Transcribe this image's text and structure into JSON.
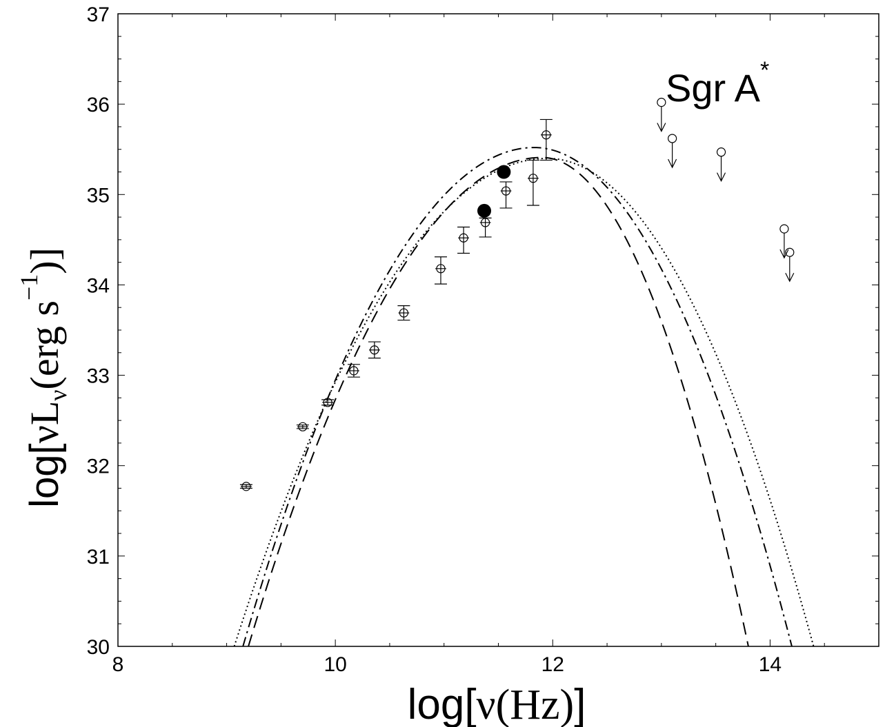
{
  "chart_data": {
    "type": "scatter",
    "title": "",
    "annotation": {
      "main": "Sgr A",
      "superscript": "*"
    },
    "xlabel": {
      "prefix": "log[",
      "symbol": "ν",
      "unit": "(Hz)",
      "suffix": "]"
    },
    "ylabel": {
      "prefix": "log[",
      "nu": "ν",
      "L": "L",
      "sub": "ν",
      "paren_open": "(erg s",
      "exp": "−1",
      "paren_close": ")]"
    },
    "xlim": [
      8,
      15
    ],
    "ylim": [
      30,
      37
    ],
    "x_ticks": [
      8,
      10,
      12,
      14
    ],
    "x_tick_labels": [
      "8",
      "10",
      "12",
      "14"
    ],
    "y_ticks": [
      30,
      31,
      32,
      33,
      34,
      35,
      36,
      37
    ],
    "y_tick_labels": [
      "30",
      "31",
      "32",
      "33",
      "34",
      "35",
      "36",
      "37"
    ],
    "grid": false,
    "legend": "none",
    "points_open": [
      {
        "x": 9.18,
        "y": 31.77,
        "xerr": 0.05,
        "yerr_up": 0.02,
        "yerr_down": 0.02
      },
      {
        "x": 9.7,
        "y": 32.43,
        "xerr": 0.05,
        "yerr_up": 0.02,
        "yerr_down": 0.02
      },
      {
        "x": 9.93,
        "y": 32.7,
        "xerr": 0.05,
        "yerr_up": 0.03,
        "yerr_down": 0.03
      },
      {
        "x": 10.17,
        "y": 33.05,
        "xerr": 0.05,
        "yerr_up": 0.07,
        "yerr_down": 0.07
      },
      {
        "x": 10.36,
        "y": 33.28,
        "xerr": 0.05,
        "yerr_up": 0.09,
        "yerr_down": 0.09
      },
      {
        "x": 10.63,
        "y": 33.69,
        "xerr": 0.05,
        "yerr_up": 0.08,
        "yerr_down": 0.08
      },
      {
        "x": 10.97,
        "y": 34.18,
        "xerr": 0.05,
        "yerr_up": 0.13,
        "yerr_down": 0.17
      },
      {
        "x": 11.18,
        "y": 34.52,
        "xerr": 0.05,
        "yerr_up": 0.12,
        "yerr_down": 0.17
      },
      {
        "x": 11.38,
        "y": 34.69,
        "xerr": 0.05,
        "yerr_up": 0.05,
        "yerr_down": 0.16
      },
      {
        "x": 11.57,
        "y": 35.04,
        "xerr": 0.05,
        "yerr_up": 0.1,
        "yerr_down": 0.19
      },
      {
        "x": 11.82,
        "y": 35.18,
        "xerr": 0.05,
        "yerr_up": 0.2,
        "yerr_down": 0.3
      },
      {
        "x": 11.94,
        "y": 35.66,
        "xerr": 0.05,
        "yerr_up": 0.17,
        "yerr_down": 0.28
      }
    ],
    "points_filled": [
      {
        "x": 11.37,
        "y": 34.82
      },
      {
        "x": 11.55,
        "y": 35.25
      }
    ],
    "upper_limits": [
      {
        "x": 13.0,
        "y": 36.02
      },
      {
        "x": 13.1,
        "y": 35.62
      },
      {
        "x": 13.55,
        "y": 35.47
      },
      {
        "x": 14.13,
        "y": 34.62
      },
      {
        "x": 14.18,
        "y": 34.36
      }
    ],
    "series": [
      {
        "style": "dotted",
        "peak_x": 11.95,
        "peak_y": 35.4,
        "left_x": 9.07,
        "right_x": 14.4
      },
      {
        "style": "dashdot",
        "peak_x": 11.83,
        "peak_y": 35.52,
        "left_x": 9.15,
        "right_x": 14.2
      },
      {
        "style": "dashed",
        "peak_x": 11.9,
        "peak_y": 35.41,
        "left_x": 9.2,
        "right_x": 13.8
      }
    ]
  }
}
